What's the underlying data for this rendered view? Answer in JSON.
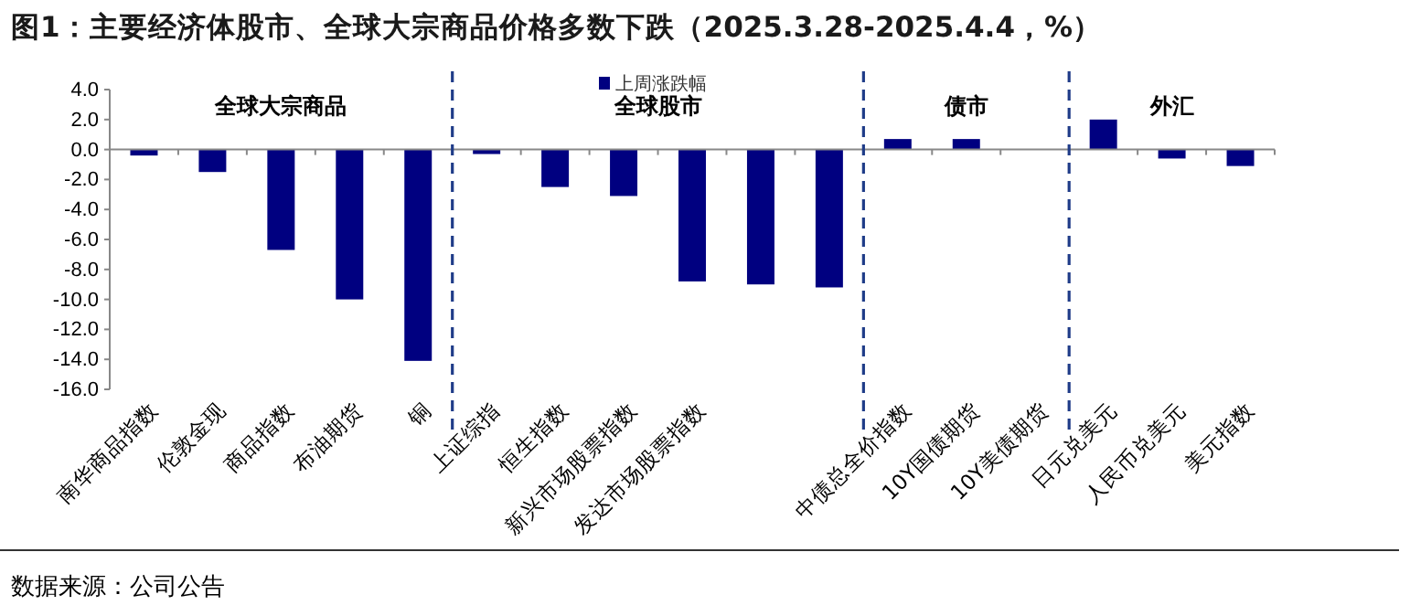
{
  "chart_data": {
    "type": "bar",
    "title": "图1：主要经济体股市、全球大宗商品价格多数下跌（2025.3.28-2025.4.4，%）",
    "categories": [
      "南华商品指数",
      "伦敦金现",
      "商品指数",
      "布油期货",
      "铜",
      "上证综指",
      "恒生指数",
      "新兴市场股票指数",
      "发达市场股票指数",
      null,
      null,
      "中债总全价指数",
      "10Y国债期货",
      "10Y美债期货",
      "日元兑美元",
      "人民币兑美元",
      "美元指数"
    ],
    "series": [
      {
        "name": "上周涨跌幅",
        "color": "#000080",
        "values": [
          -0.4,
          -1.5,
          -6.7,
          -10.0,
          -14.1,
          -0.3,
          -2.5,
          -3.1,
          -8.8,
          -9.0,
          -9.2,
          0.7,
          0.7,
          0.0,
          2.0,
          -0.6,
          -1.1
        ]
      }
    ],
    "ylim": [
      -16,
      4
    ],
    "yticks": [
      {
        "value": -16,
        "label": "-16.0"
      },
      {
        "value": -14,
        "label": "-14.0"
      },
      {
        "value": -12,
        "label": "-12.0"
      },
      {
        "value": -10,
        "label": "-10.0"
      },
      {
        "value": -8,
        "label": "-8.0"
      },
      {
        "value": -6,
        "label": "-6.0"
      },
      {
        "value": -4,
        "label": "-4.0"
      },
      {
        "value": -2,
        "label": "-2.0"
      },
      {
        "value": 0,
        "label": "0.0"
      },
      {
        "value": 2,
        "label": "2.0"
      },
      {
        "value": 4,
        "label": "4.0"
      }
    ],
    "annotations": [
      "全球大宗商品",
      "全球股市",
      "债市",
      "外汇",
      "数据来源：公司公告"
    ],
    "legend": "top"
  }
}
